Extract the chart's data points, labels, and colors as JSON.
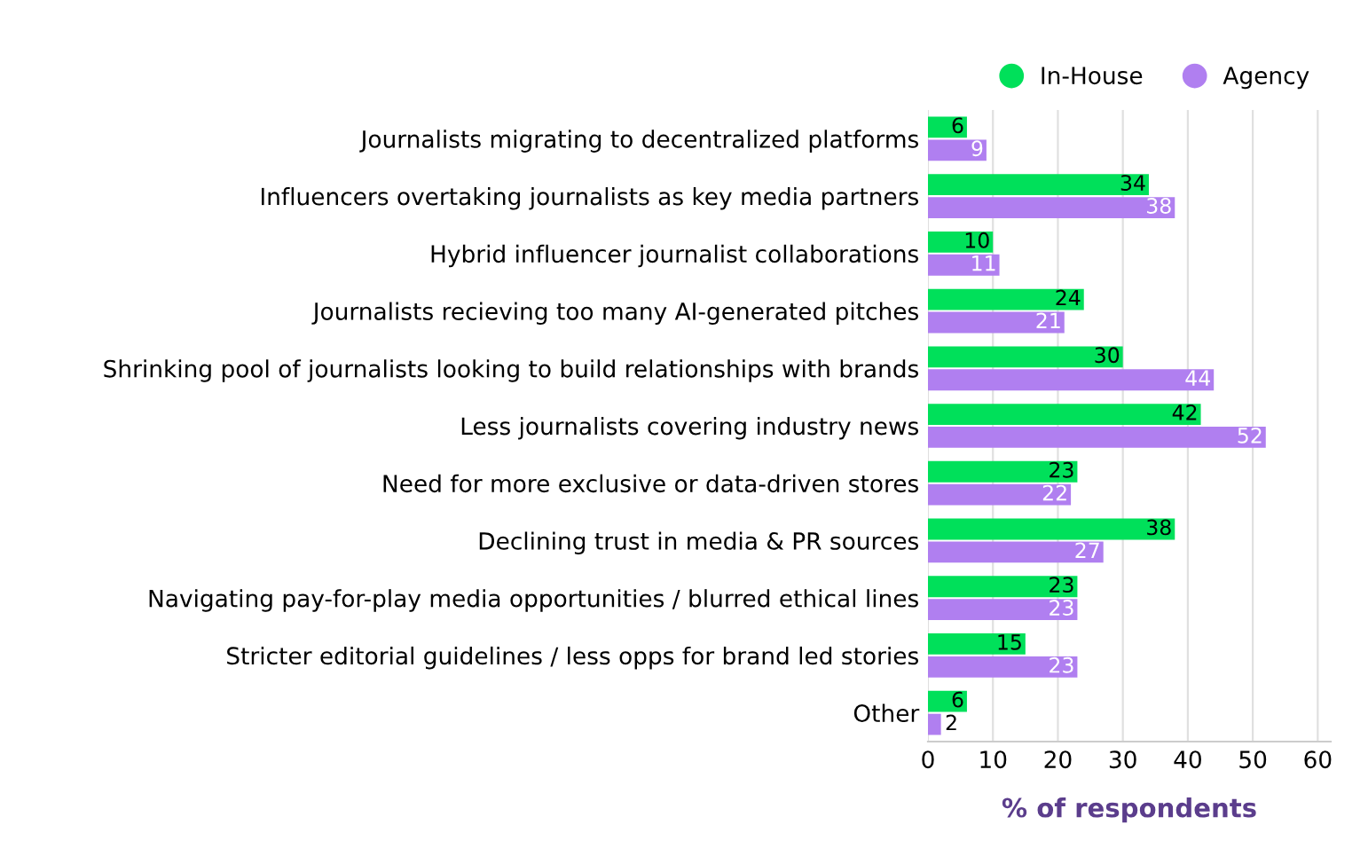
{
  "chart_data": {
    "type": "bar",
    "orientation": "horizontal",
    "xlabel": "% of respondents",
    "categories": [
      "Journalists migrating to decentralized platforms",
      "Influencers overtaking journalists as key media partners",
      "Hybrid influencer journalist collaborations",
      "Journalists recieving too many AI-generated pitches",
      "Shrinking pool of journalists looking to build relationships with brands",
      "Less journalists covering industry news",
      "Need for more exclusive or data-driven stores",
      "Declining trust in media & PR sources",
      "Navigating pay-for-play media opportunities / blurred ethical lines",
      "Stricter editorial guidelines / less opps for brand led stories",
      "Other"
    ],
    "series": [
      {
        "name": "In-House",
        "color": "#00e05a",
        "values": [
          6,
          34,
          10,
          24,
          30,
          42,
          23,
          38,
          23,
          15,
          6
        ]
      },
      {
        "name": "Agency",
        "color": "#b07ff0",
        "values": [
          9,
          38,
          11,
          21,
          44,
          52,
          22,
          27,
          23,
          23,
          2
        ]
      }
    ],
    "xlim": [
      0,
      62
    ],
    "xticks": [
      0,
      10,
      20,
      30,
      40,
      50,
      60
    ],
    "grid": "x",
    "legend": "top right",
    "data_labels": true
  }
}
